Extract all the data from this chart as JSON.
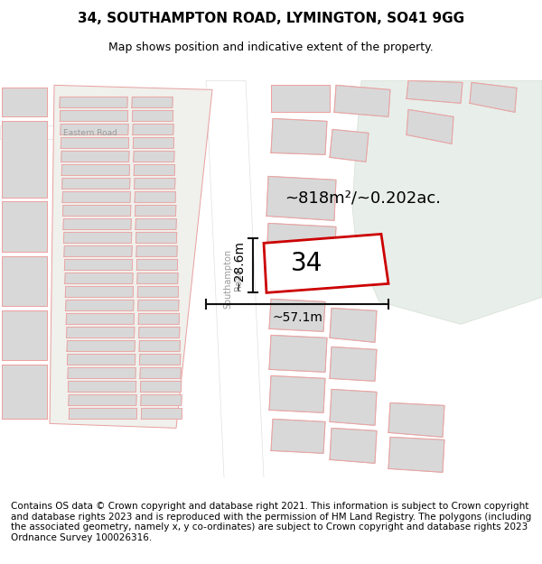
{
  "title": "34, SOUTHAMPTON ROAD, LYMINGTON, SO41 9GG",
  "subtitle": "Map shows position and indicative extent of the property.",
  "footer": "Contains OS data © Crown copyright and database right 2021. This information is subject to Crown copyright and database rights 2023 and is reproduced with the permission of HM Land Registry. The polygons (including the associated geometry, namely x, y co-ordinates) are subject to Crown copyright and database rights 2023 Ordnance Survey 100026316.",
  "area_label": "~818m²/~0.202ac.",
  "width_label": "~57.1m",
  "height_label": "~28.6m",
  "number_label": "34",
  "map_bg": "#f5f5f0",
  "road_fill": "#ffffff",
  "building_fill": "#d8d8d8",
  "building_edge": "#c8c8c8",
  "pink_line": "#f0a0a0",
  "property_fill": "#ffffff",
  "property_edge": "#cc0000",
  "green_area": "#e8eeea",
  "title_fontsize": 11,
  "subtitle_fontsize": 9,
  "footer_fontsize": 7.5
}
